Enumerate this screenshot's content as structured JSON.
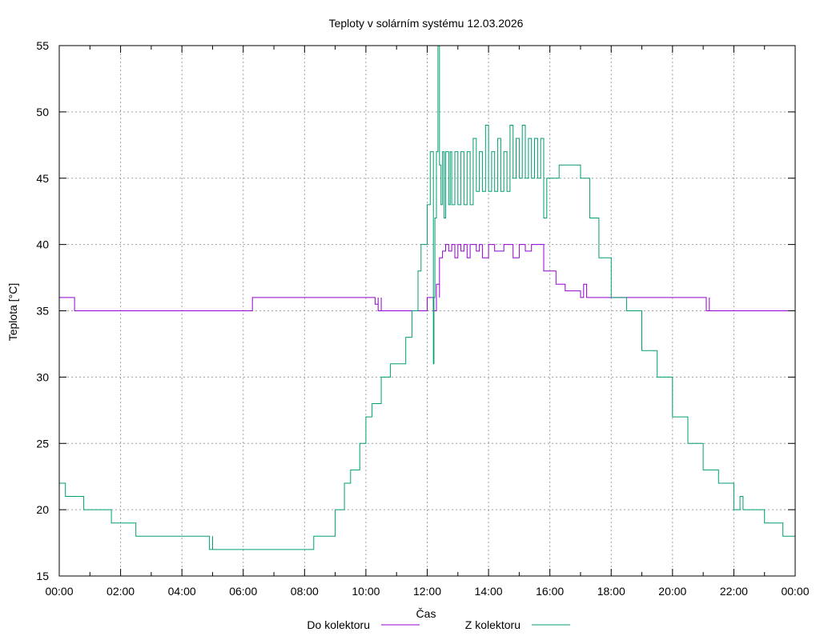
{
  "chart_data": {
    "type": "line",
    "title": "Teploty v solárním systému 12.03.2026",
    "xlabel": "Čas",
    "ylabel": "Teplota [°C]",
    "xlim": [
      0,
      24
    ],
    "ylim": [
      15,
      55
    ],
    "grid": true,
    "legend_position": "bottom",
    "x_ticks": [
      0,
      2,
      4,
      6,
      8,
      10,
      12,
      14,
      16,
      18,
      20,
      22,
      24
    ],
    "x_tick_labels": [
      "00:00",
      "02:00",
      "04:00",
      "06:00",
      "08:00",
      "10:00",
      "12:00",
      "14:00",
      "16:00",
      "18:00",
      "20:00",
      "22:00",
      "00:00"
    ],
    "y_ticks": [
      15,
      20,
      25,
      30,
      35,
      40,
      45,
      50,
      55
    ],
    "y_tick_labels": [
      "15",
      "20",
      "25",
      "30",
      "35",
      "40",
      "45",
      "50",
      "55"
    ],
    "series": [
      {
        "name": "Do kolektoru",
        "color": "#9400d3",
        "x": [
          0,
          0.5,
          0.5,
          6.3,
          6.3,
          10.3,
          10.3,
          10.4,
          10.4,
          10.5,
          10.5,
          11.9,
          11.9,
          12.0,
          12.2,
          12.3,
          12.3,
          12.4,
          12.4,
          12.5,
          12.5,
          12.6,
          12.7,
          12.8,
          12.9,
          13.0,
          13.1,
          13.2,
          13.3,
          13.4,
          13.5,
          13.6,
          13.7,
          13.8,
          14.0,
          14.2,
          14.5,
          14.8,
          15.0,
          15.2,
          15.4,
          15.5,
          15.8,
          15.8,
          16.2,
          16.2,
          16.5,
          16.5,
          17.0,
          17.0,
          17.1,
          17.2,
          18.0,
          19.0,
          20.0,
          21.1,
          21.1,
          21.2,
          21.2,
          22.5,
          24.0
        ],
        "y": [
          36,
          36,
          35,
          35,
          36,
          36,
          35.5,
          36,
          35,
          36,
          35,
          35,
          35,
          36,
          35,
          36,
          37,
          36,
          39,
          39,
          39.5,
          40,
          39.5,
          40,
          39,
          40,
          39.5,
          40,
          39,
          40,
          40,
          39.5,
          40,
          39,
          40,
          39.5,
          40,
          39,
          40,
          39.5,
          40,
          40,
          39,
          38,
          38,
          37,
          37,
          36.5,
          36.5,
          36,
          37,
          36,
          36,
          36,
          36,
          36,
          35,
          36,
          35,
          35,
          35
        ]
      },
      {
        "name": "Z kolektoru",
        "color": "#009e73",
        "x": [
          0,
          0.2,
          0.2,
          0.8,
          0.8,
          1.0,
          1.0,
          1.7,
          1.7,
          2.5,
          2.5,
          3.5,
          4.5,
          4.9,
          4.9,
          5.0,
          5.0,
          5.1,
          5.1,
          6.0,
          7.0,
          8.3,
          8.3,
          8.8,
          9.0,
          9.3,
          9.5,
          9.8,
          10.0,
          10.2,
          10.5,
          10.8,
          11.0,
          11.3,
          11.5,
          11.7,
          11.8,
          12.0,
          12.1,
          12.2,
          12.22,
          12.25,
          12.3,
          12.35,
          12.4,
          12.45,
          12.5,
          12.55,
          12.6,
          12.7,
          12.75,
          12.8,
          12.9,
          13.0,
          13.1,
          13.2,
          13.3,
          13.4,
          13.5,
          13.6,
          13.7,
          13.8,
          13.9,
          14.0,
          14.1,
          14.2,
          14.3,
          14.4,
          14.5,
          14.6,
          14.7,
          14.8,
          14.9,
          15.0,
          15.1,
          15.2,
          15.3,
          15.4,
          15.5,
          15.6,
          15.7,
          15.8,
          15.9,
          16.3,
          16.3,
          16.7,
          17.0,
          17.3,
          17.6,
          18.0,
          18.5,
          19.0,
          19.5,
          20.0,
          20.5,
          21.0,
          21.5,
          22.0,
          22.2,
          22.3,
          22.5,
          23.0,
          23.3,
          23.6,
          24.0
        ],
        "y": [
          22,
          22,
          21,
          21,
          20,
          20,
          20,
          20,
          19,
          19,
          18,
          18,
          18,
          18,
          17,
          18,
          17,
          17,
          17,
          17,
          17,
          17,
          18,
          18,
          20,
          22,
          23,
          25,
          27,
          28,
          30,
          31,
          31,
          33,
          35,
          38,
          40,
          43,
          47,
          31,
          36,
          42,
          47,
          55,
          46,
          43,
          47,
          42,
          47,
          43,
          47,
          43,
          47,
          43,
          47,
          43,
          47,
          43,
          48,
          44,
          47,
          44,
          49,
          44,
          47,
          44,
          48,
          44,
          47,
          44,
          49,
          45,
          48,
          45,
          49,
          45,
          48,
          45,
          48,
          45,
          48,
          42,
          45,
          45,
          46,
          46,
          45,
          42,
          39,
          36,
          35,
          32,
          30,
          27,
          25,
          23,
          22,
          20,
          21,
          20,
          20,
          19,
          19,
          18,
          18
        ]
      }
    ]
  }
}
